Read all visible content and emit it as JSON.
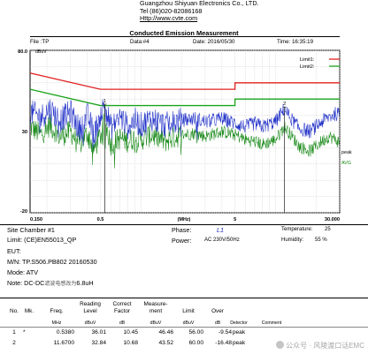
{
  "company": {
    "name": "Guangzhou Shiyuan Electronics Co., LTD.",
    "tel": "Tel (86)020-82086168",
    "url": "Http://www.cvte.com"
  },
  "report": {
    "title": "Conducted Emission Measurement",
    "file_label": "File :TP",
    "data_label": "Data:#4",
    "date_label": "Date: 2016/05/30",
    "time_label": "Time: 16:35:19"
  },
  "chart_data": {
    "type": "line",
    "x_scale": "log",
    "xlim": [
      0.15,
      30
    ],
    "ylim": [
      -20,
      80
    ],
    "y_unit": "dBuV",
    "x_unit": "(MHz)",
    "y_tick_labels": [
      {
        "value": 80,
        "label": "80.0"
      },
      {
        "value": 30,
        "label": "30"
      },
      {
        "value": -20,
        "label": "-20"
      }
    ],
    "x_tick_labels": [
      {
        "value": 0.15,
        "label": "0.150"
      },
      {
        "value": 0.5,
        "label": "0.5"
      },
      {
        "value": 5,
        "label": "5"
      },
      {
        "value": 30,
        "label": "30.000"
      }
    ],
    "x_gridlines": [
      0.2,
      0.3,
      0.4,
      0.5,
      0.6,
      0.7,
      0.8,
      0.9,
      1,
      2,
      3,
      4,
      5,
      6,
      7,
      8,
      9,
      10,
      20,
      30
    ],
    "y_gridlines": [
      80,
      70,
      60,
      50,
      40,
      30,
      20,
      10,
      0,
      -10,
      -20
    ],
    "limits": [
      {
        "name": "Limit1:",
        "color": "#e02020",
        "points": [
          [
            0.15,
            66
          ],
          [
            0.5,
            56
          ],
          [
            5,
            56
          ],
          [
            5,
            60
          ],
          [
            30,
            60
          ]
        ]
      },
      {
        "name": "Limit2:",
        "color": "#1aa31a",
        "points": [
          [
            0.15,
            56
          ],
          [
            0.5,
            46
          ],
          [
            5,
            46
          ],
          [
            5,
            50
          ],
          [
            30,
            50
          ]
        ]
      }
    ],
    "series": [
      {
        "name": "peak",
        "color": "#2030c8"
      },
      {
        "name": "AVG",
        "color": "#1a8a1a"
      }
    ],
    "peak_trace": [
      [
        0.15,
        42
      ],
      [
        0.18,
        39
      ],
      [
        0.21,
        44
      ],
      [
        0.25,
        37
      ],
      [
        0.3,
        42
      ],
      [
        0.35,
        31
      ],
      [
        0.4,
        40
      ],
      [
        0.45,
        28
      ],
      [
        0.5,
        41
      ],
      [
        0.54,
        46
      ],
      [
        0.6,
        32
      ],
      [
        0.7,
        39
      ],
      [
        0.8,
        33
      ],
      [
        0.9,
        37
      ],
      [
        1.0,
        34
      ],
      [
        1.2,
        38
      ],
      [
        1.5,
        34
      ],
      [
        2.0,
        37
      ],
      [
        2.5,
        38
      ],
      [
        3.0,
        36
      ],
      [
        4.0,
        38
      ],
      [
        5.0,
        35
      ],
      [
        6.0,
        33
      ],
      [
        7.0,
        35
      ],
      [
        8.0,
        33
      ],
      [
        10.0,
        36
      ],
      [
        11.67,
        44
      ],
      [
        13.0,
        38
      ],
      [
        15.0,
        32
      ],
      [
        18.0,
        30
      ],
      [
        20.0,
        33
      ],
      [
        22.0,
        36
      ],
      [
        25.0,
        39
      ],
      [
        28.0,
        41
      ],
      [
        30.0,
        40
      ]
    ],
    "avg_trace": [
      [
        0.15,
        33
      ],
      [
        0.18,
        28
      ],
      [
        0.21,
        34
      ],
      [
        0.25,
        27
      ],
      [
        0.3,
        30
      ],
      [
        0.35,
        22
      ],
      [
        0.4,
        29
      ],
      [
        0.45,
        19
      ],
      [
        0.5,
        28
      ],
      [
        0.54,
        36
      ],
      [
        0.6,
        22
      ],
      [
        0.7,
        26
      ],
      [
        0.8,
        24
      ],
      [
        0.9,
        26
      ],
      [
        1.0,
        25
      ],
      [
        1.2,
        28
      ],
      [
        1.5,
        24
      ],
      [
        2.0,
        28
      ],
      [
        2.5,
        29
      ],
      [
        3.0,
        27
      ],
      [
        4.0,
        30
      ],
      [
        5.0,
        28
      ],
      [
        6.0,
        25
      ],
      [
        7.0,
        24
      ],
      [
        8.0,
        22
      ],
      [
        10.0,
        25
      ],
      [
        11.67,
        33
      ],
      [
        13.0,
        28
      ],
      [
        15.0,
        21
      ],
      [
        18.0,
        18
      ],
      [
        20.0,
        21
      ],
      [
        22.0,
        24
      ],
      [
        25.0,
        27
      ],
      [
        28.0,
        25
      ],
      [
        30.0,
        23
      ]
    ],
    "markers": [
      {
        "label": "1",
        "freq": 0.538
      },
      {
        "label": "2",
        "freq": 11.67
      }
    ]
  },
  "info": {
    "site": "Site  Chamber #1",
    "limit": "Limit: (CE)EN55013_QP",
    "eut": "EUT:",
    "mn": "M/N:  TP.S506.PB802 20160530",
    "mode": "Mode:  ATV",
    "note_prefix": "Note: DC-DC",
    "note_cn": "滤波电感改为",
    "note_value": "6.8uH",
    "phase_label": "Phase:",
    "phase_value": "L1",
    "power_label": "Power:",
    "power_value": "AC 230V/50Hz",
    "temp_label": "Temperature:",
    "temp_value": "25",
    "humidity_label": "Humidity:",
    "humidity_value": "55 %"
  },
  "table": {
    "headers": [
      "No.",
      "Mk.",
      "Freq.",
      "Reading Level",
      "Correct Factor",
      "Measure- ment",
      "Limit",
      "Over",
      "",
      ""
    ],
    "header_lines": [
      [
        "No."
      ],
      [
        "Mk."
      ],
      [
        "Freq."
      ],
      [
        "Reading",
        "Level"
      ],
      [
        "Correct",
        "Factor"
      ],
      [
        "Measure-",
        "ment"
      ],
      [
        "Limit"
      ],
      [
        "Over"
      ]
    ],
    "units": [
      "",
      "",
      "MHz",
      "dBuV",
      "dB",
      "dBuV",
      "dBuV",
      "dB",
      "Detector",
      "Comment"
    ],
    "rows": [
      {
        "no": "1",
        "mk": "*",
        "freq": "0.5380",
        "reading": "36.01",
        "factor": "10.45",
        "measurement": "46.46",
        "limit": "56.00",
        "over": "-9.54",
        "detector": "peak",
        "comment": ""
      },
      {
        "no": "2",
        "mk": "",
        "freq": "11.6700",
        "reading": "32.84",
        "factor": "10.68",
        "measurement": "43.52",
        "limit": "60.00",
        "over": "-16.48",
        "detector": "peak",
        "comment": ""
      }
    ]
  },
  "watermark": "公众号 · 风陵渡口话EMC"
}
